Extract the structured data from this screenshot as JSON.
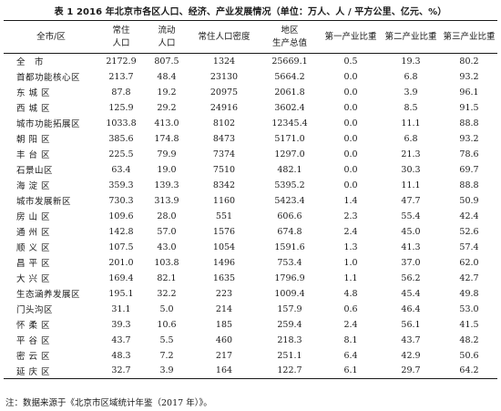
{
  "title": "表 1   2016 年北京市各区人口、经济、产业发展情况（单位：万人、人 / 平方公里、亿元、%）",
  "columns": [
    {
      "line1": "全市/区",
      "line2": ""
    },
    {
      "line1": "常住",
      "line2": "人口"
    },
    {
      "line1": "流动",
      "line2": "人口"
    },
    {
      "line1": "常住人口密度",
      "line2": ""
    },
    {
      "line1": "地区",
      "line2": "生产总值"
    },
    {
      "line1": "第一产业比重",
      "line2": ""
    },
    {
      "line1": "第二产业比重",
      "line2": ""
    },
    {
      "line1": "第三产业比重",
      "line2": ""
    }
  ],
  "rows": [
    [
      "全　市",
      "2172.9",
      "807.5",
      "1324",
      "25669.1",
      "0.5",
      "19.3",
      "80.2"
    ],
    [
      "首都功能核心区",
      "213.7",
      "48.4",
      "23130",
      "5664.2",
      "0.0",
      "6.8",
      "93.2"
    ],
    [
      "东 城 区",
      "87.8",
      "19.2",
      "20975",
      "2061.8",
      "0.0",
      "3.9",
      "96.1"
    ],
    [
      "西 城 区",
      "125.9",
      "29.2",
      "24916",
      "3602.4",
      "0.0",
      "8.5",
      "91.5"
    ],
    [
      "城市功能拓展区",
      "1033.8",
      "413.0",
      "8102",
      "12345.4",
      "0.0",
      "11.1",
      "88.8"
    ],
    [
      "朝 阳 区",
      "385.6",
      "174.8",
      "8473",
      "5171.0",
      "0.0",
      "6.8",
      "93.2"
    ],
    [
      "丰 台 区",
      "225.5",
      "79.9",
      "7374",
      "1297.0",
      "0.0",
      "21.3",
      "78.6"
    ],
    [
      "石景山区",
      "63.4",
      "19.0",
      "7510",
      "482.1",
      "0.0",
      "30.3",
      "69.7"
    ],
    [
      "海 淀 区",
      "359.3",
      "139.3",
      "8342",
      "5395.2",
      "0.0",
      "11.1",
      "88.8"
    ],
    [
      "城市发展新区",
      "730.3",
      "313.9",
      "1160",
      "5423.4",
      "1.4",
      "47.7",
      "50.9"
    ],
    [
      "房 山 区",
      "109.6",
      "28.0",
      "551",
      "606.6",
      "2.3",
      "55.4",
      "42.4"
    ],
    [
      "通 州 区",
      "142.8",
      "57.0",
      "1576",
      "674.8",
      "2.4",
      "45.0",
      "52.6"
    ],
    [
      "顺 义 区",
      "107.5",
      "43.0",
      "1054",
      "1591.6",
      "1.3",
      "41.3",
      "57.4"
    ],
    [
      "昌 平 区",
      "201.0",
      "103.8",
      "1496",
      "753.4",
      "1.0",
      "37.0",
      "62.0"
    ],
    [
      "大 兴 区",
      "169.4",
      "82.1",
      "1635",
      "1796.9",
      "1.1",
      "56.2",
      "42.7"
    ],
    [
      "生态涵养发展区",
      "195.1",
      "32.2",
      "223",
      "1009.4",
      "4.8",
      "45.4",
      "49.8"
    ],
    [
      "门头沟区",
      "31.1",
      "5.0",
      "214",
      "157.9",
      "0.6",
      "46.4",
      "53.0"
    ],
    [
      "怀 柔 区",
      "39.3",
      "10.6",
      "185",
      "259.4",
      "2.4",
      "56.1",
      "41.5"
    ],
    [
      "平 谷 区",
      "43.7",
      "5.5",
      "460",
      "218.3",
      "8.1",
      "43.7",
      "48.2"
    ],
    [
      "密 云 区",
      "48.3",
      "7.2",
      "217",
      "251.1",
      "6.4",
      "42.9",
      "50.6"
    ],
    [
      "延 庆 区",
      "32.7",
      "3.9",
      "164",
      "122.7",
      "6.1",
      "29.7",
      "64.2"
    ]
  ],
  "footnote": "注：数据来源于《北京市区域统计年鉴（2017 年）》。"
}
